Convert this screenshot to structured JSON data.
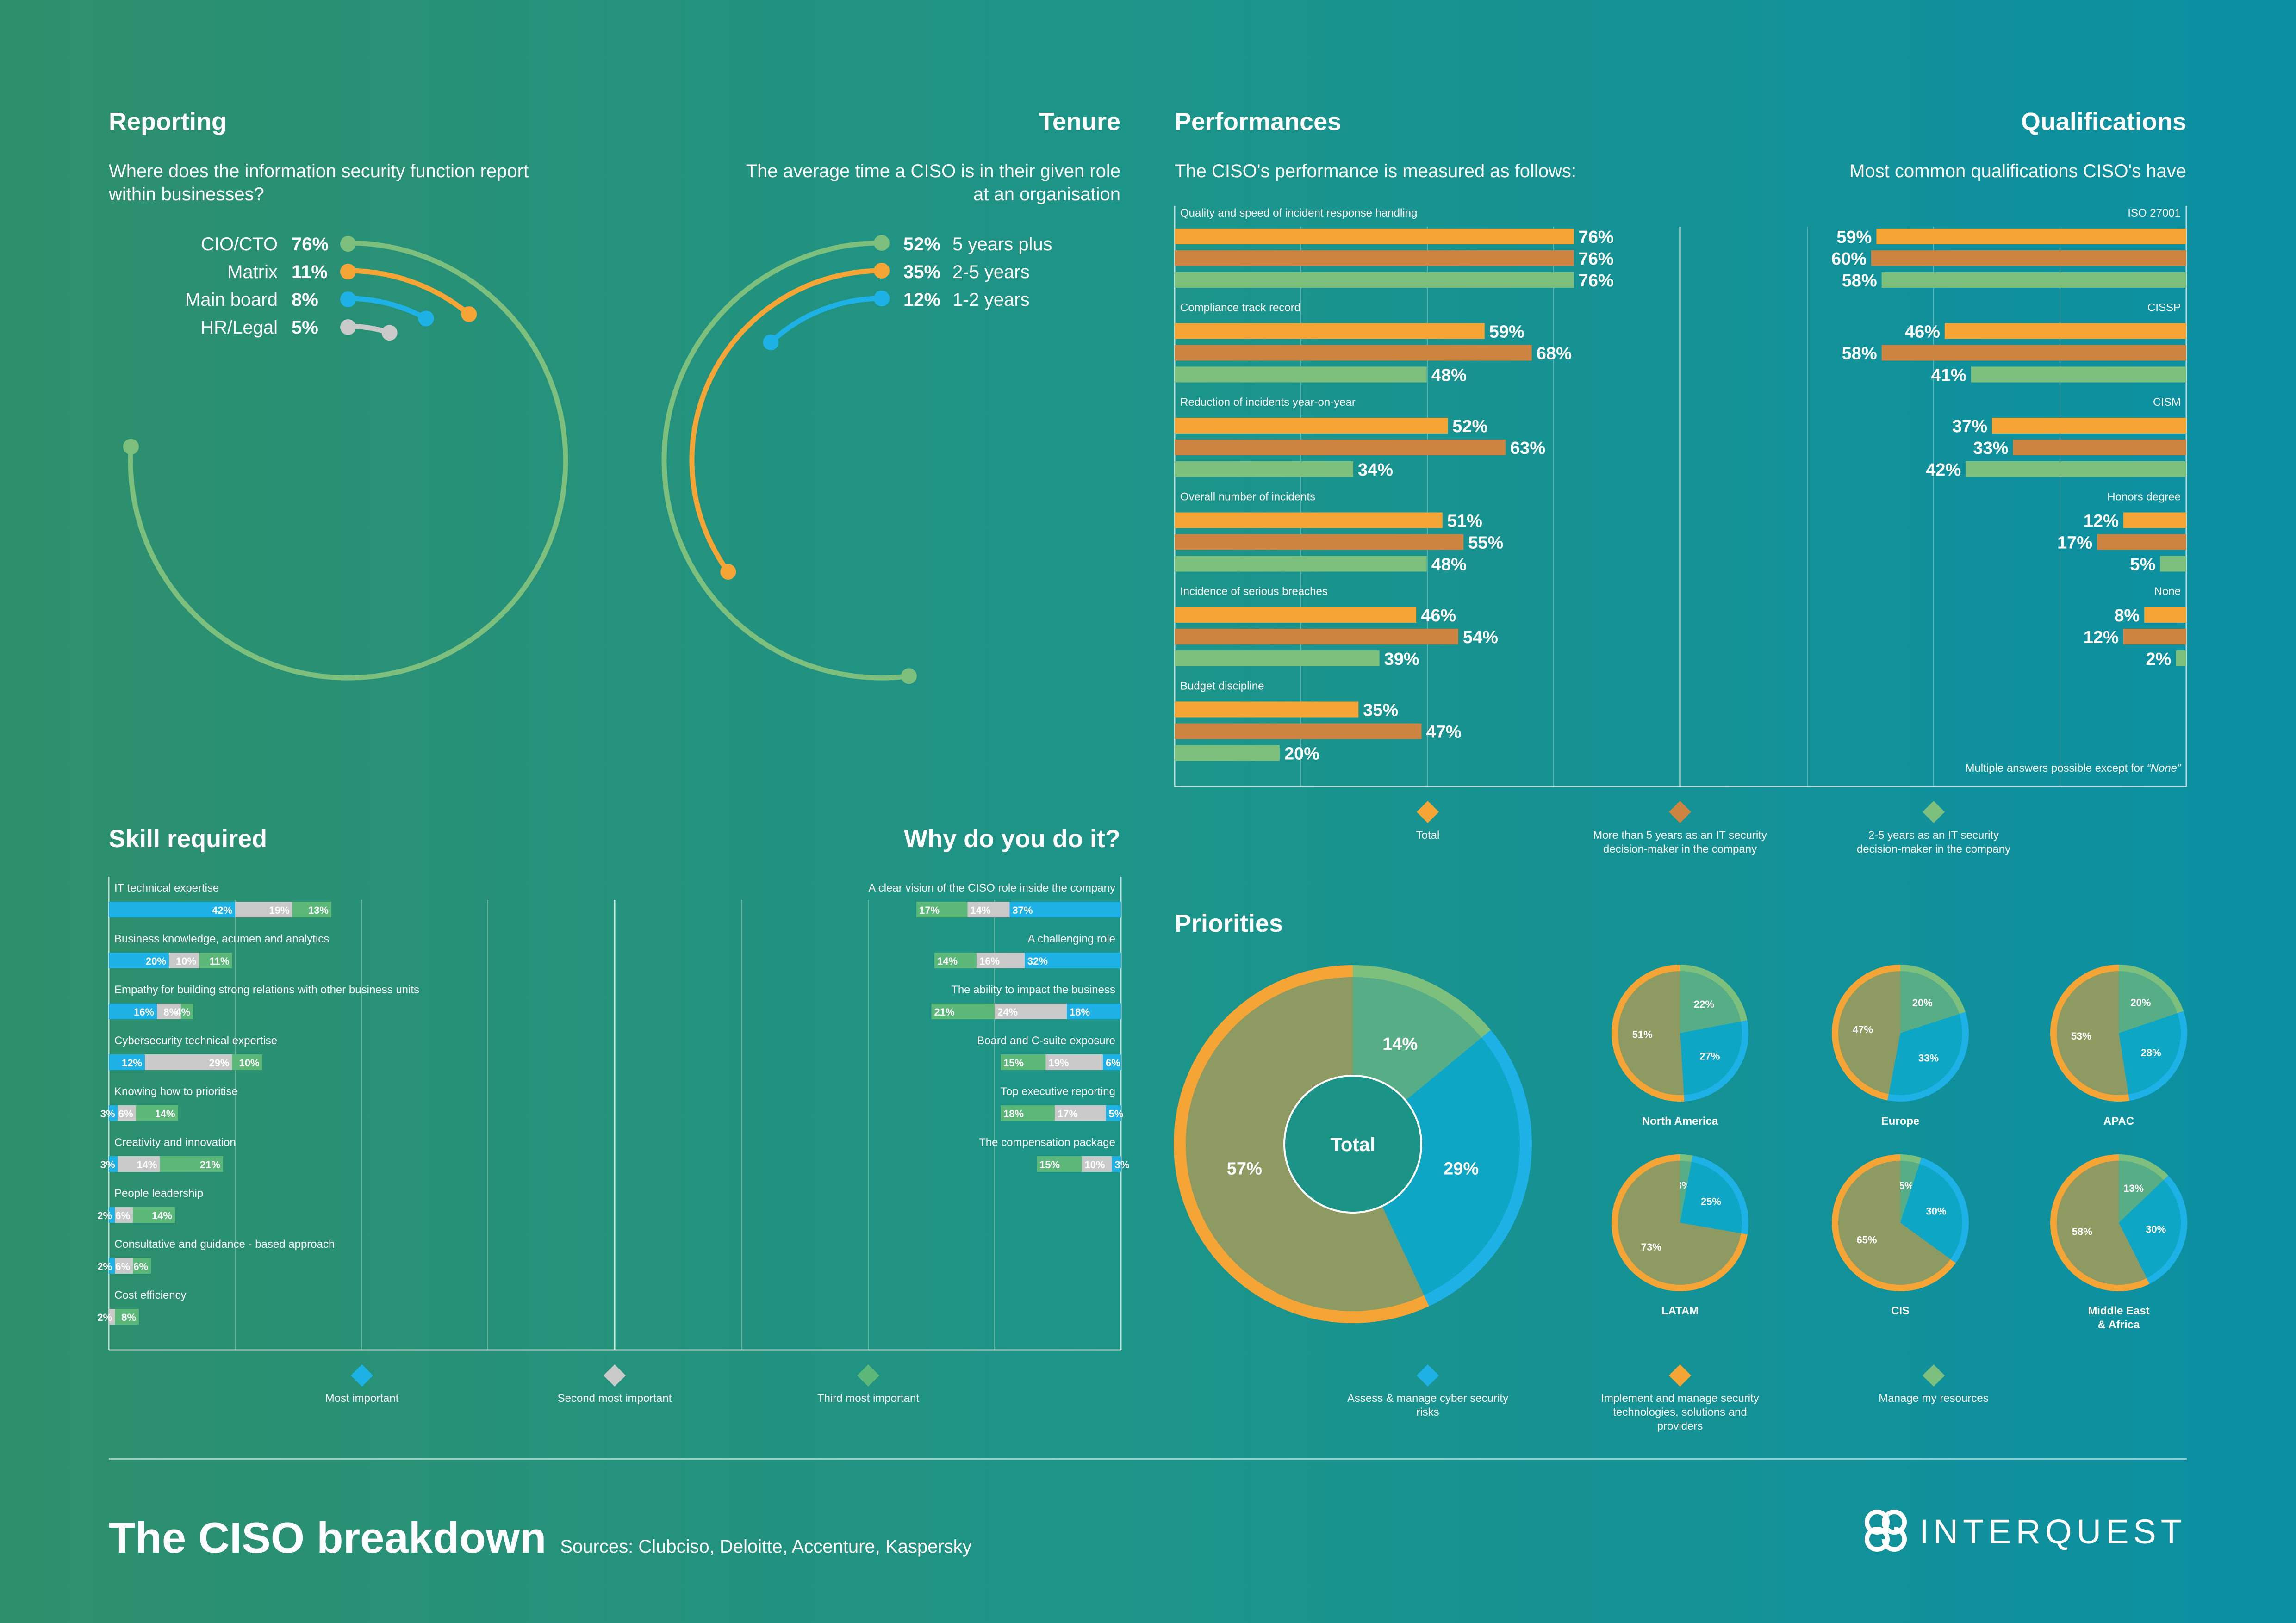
{
  "reporting": {
    "title": "Reporting",
    "subtitle": "Where does the information security function report within businesses?",
    "items": [
      {
        "label": "CIO/CTO",
        "pct": "76%",
        "value": 76,
        "color": "#7dbf7d"
      },
      {
        "label": "Matrix",
        "pct": "11%",
        "value": 11,
        "color": "#f5a536"
      },
      {
        "label": "Main board",
        "pct": "8%",
        "value": 8,
        "color": "#1eb1e6"
      },
      {
        "label": "HR/Legal",
        "pct": "5%",
        "value": 5,
        "color": "#c9c9c9"
      }
    ]
  },
  "tenure": {
    "title": "Tenure",
    "subtitle": "The average time a CISO is in their given role at an organisation",
    "items": [
      {
        "label": "5 years plus",
        "pct": "52%",
        "value": 52,
        "color": "#7dbf7d"
      },
      {
        "label": "2-5 years",
        "pct": "35%",
        "value": 35,
        "color": "#f5a536"
      },
      {
        "label": "1-2 years",
        "pct": "12%",
        "value": 12,
        "color": "#1eb1e6"
      }
    ]
  },
  "performances": {
    "title": "Performances",
    "subtitle": "The CISO's performance is measured as follows:",
    "chart_data": {
      "type": "bar",
      "categories": [
        "Quality and speed of incident response handling",
        "Compliance track record",
        "Reduction of incidents year-on-year",
        "Overall number of incidents",
        "Incidence of serious breaches",
        "Budget discipline"
      ],
      "series": [
        {
          "name": "Total",
          "color": "#f5a536",
          "values": [
            76,
            59,
            52,
            51,
            46,
            35
          ]
        },
        {
          "name": "More than 5 years as an IT security decision-maker in the company",
          "color": "#cc8440",
          "values": [
            76,
            68,
            63,
            55,
            54,
            47
          ]
        },
        {
          "name": "2-5 years as an IT security decision-maker in the company",
          "color": "#7dbf7d",
          "values": [
            76,
            48,
            34,
            48,
            39,
            20
          ]
        }
      ]
    }
  },
  "qualifications": {
    "title": "Qualifications",
    "subtitle": "Most common qualifications CISO's have",
    "note_prefix": "Multiple answers possible except for ",
    "note_em": "“None”",
    "chart_data": {
      "type": "bar",
      "categories": [
        "ISO 27001",
        "CISSP",
        "CISM",
        "Honors degree",
        "None"
      ],
      "series": [
        {
          "name": "Total",
          "color": "#f5a536",
          "values": [
            59,
            46,
            37,
            12,
            8
          ]
        },
        {
          "name": "More than 5 years as an IT security decision-maker in the company",
          "color": "#cc8440",
          "values": [
            60,
            58,
            33,
            17,
            12
          ]
        },
        {
          "name": "2-5 years as an IT security decision-maker in the company",
          "color": "#7dbf7d",
          "values": [
            58,
            41,
            42,
            5,
            2
          ]
        }
      ]
    }
  },
  "perf_legend": [
    {
      "label": "Total",
      "color": "#f5a536"
    },
    {
      "label": "More than 5 years as an IT security decision-maker in the company",
      "color": "#cc8440"
    },
    {
      "label": "2-5 years as an IT security decision-maker in the company",
      "color": "#7dbf7d"
    }
  ],
  "skills": {
    "title": "Skill required",
    "chart_data": {
      "type": "bar",
      "stacked": true,
      "categories": [
        "IT technical expertise",
        "Business knowledge, acumen and analytics",
        "Empathy for building strong relations with other business units",
        "Cybersecurity technical expertise",
        "Knowing how to prioritise",
        "Creativity and innovation",
        "People leadership",
        "Consultative and guidance - based approach",
        "Cost efficiency"
      ],
      "series": [
        {
          "name": "Most important",
          "color": "#1eb1e6",
          "values": [
            42,
            20,
            16,
            12,
            3,
            3,
            2,
            2,
            null
          ]
        },
        {
          "name": "Second most important",
          "color": "#c9c9c9",
          "values": [
            19,
            10,
            8,
            29,
            6,
            14,
            6,
            6,
            2
          ]
        },
        {
          "name": "Third most important",
          "color": "#5bb879",
          "values": [
            13,
            11,
            4,
            10,
            14,
            21,
            14,
            6,
            8
          ]
        }
      ]
    }
  },
  "why": {
    "title": "Why do you do it?",
    "chart_data": {
      "type": "bar",
      "stacked": true,
      "categories": [
        "A clear vision of the CISO role inside the company",
        "A challenging role",
        "The ability to impact the business",
        "Board and C-suite exposure",
        "Top executive reporting",
        "The compensation package"
      ],
      "series": [
        {
          "name": "Most important",
          "color": "#1eb1e6",
          "values": [
            37,
            32,
            18,
            6,
            5,
            3
          ]
        },
        {
          "name": "Second most important",
          "color": "#c9c9c9",
          "values": [
            14,
            16,
            24,
            19,
            17,
            10
          ]
        },
        {
          "name": "Third most important",
          "color": "#5bb879",
          "values": [
            17,
            14,
            21,
            15,
            18,
            15
          ]
        }
      ]
    }
  },
  "skill_legend": [
    {
      "label": "Most important",
      "color": "#1eb1e6"
    },
    {
      "label": "Second most important",
      "color": "#c9c9c9"
    },
    {
      "label": "Third most important",
      "color": "#5bb879"
    }
  ],
  "priorities": {
    "title": "Priorities",
    "total_label": "Total",
    "chart_data": [
      {
        "type": "pie",
        "name": "Total",
        "values": {
          "manage": 14,
          "assess": 29,
          "implement": 57
        }
      },
      {
        "type": "pie",
        "name": "North America",
        "values": {
          "manage": 22,
          "assess": 27,
          "implement": 51
        }
      },
      {
        "type": "pie",
        "name": "Europe",
        "values": {
          "manage": 20,
          "assess": 33,
          "implement": 47
        }
      },
      {
        "type": "pie",
        "name": "APAC",
        "values": {
          "manage": 20,
          "assess": 28,
          "implement": 53
        }
      },
      {
        "type": "pie",
        "name": "LATAM",
        "values": {
          "manage": 3,
          "assess": 25,
          "implement": 73
        }
      },
      {
        "type": "pie",
        "name": "CIS",
        "values": {
          "manage": 5,
          "assess": 30,
          "implement": 65
        }
      },
      {
        "type": "pie",
        "name": "Middle East & Africa",
        "values": {
          "manage": 13,
          "assess": 30,
          "implement": 58
        }
      }
    ],
    "legend": [
      {
        "label": "Assess & manage cyber security risks",
        "color": "#1eb1e6"
      },
      {
        "label": "Implement and manage security technologies, solutions and providers",
        "color": "#f5a536"
      },
      {
        "label": "Manage my resources",
        "color": "#7dbf7d"
      }
    ]
  },
  "footer": {
    "title": "The CISO breakdown",
    "sources": "Sources: Clubciso, Deloitte, Accenture, Kaspersky",
    "brand": "INTERQUEST"
  }
}
